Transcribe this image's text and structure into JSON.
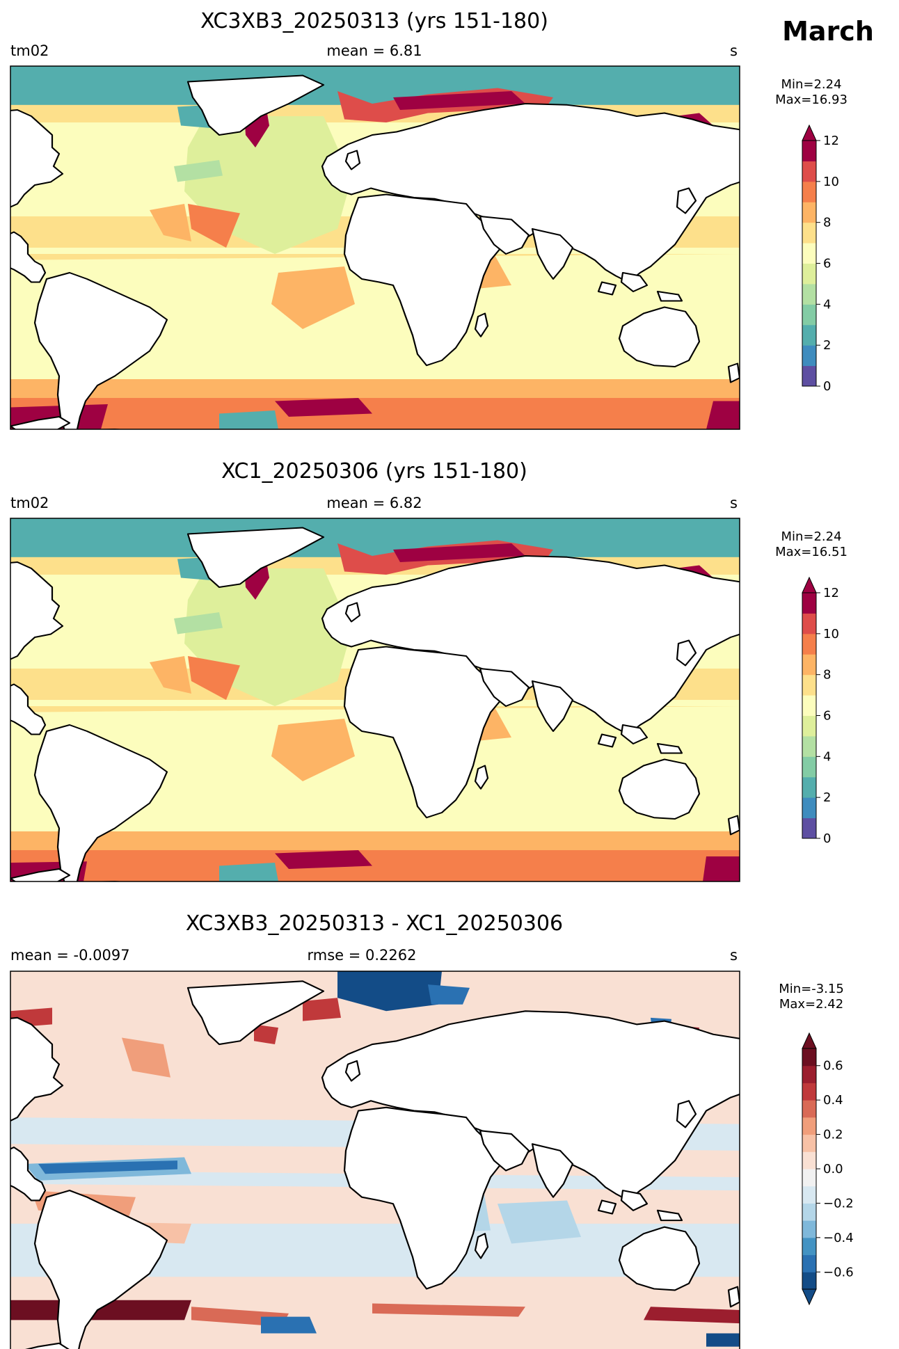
{
  "figure": {
    "month": "March"
  },
  "panels": [
    {
      "title": "XC3XB3_20250313 (yrs 151-180)",
      "left_label": "tm02",
      "center_label": "mean = 6.81",
      "right_label": "s",
      "minmax": [
        "Min=2.24",
        "Max=16.93"
      ],
      "colorbar": {
        "ticks": [
          "0",
          "2",
          "4",
          "6",
          "8",
          "10",
          "12"
        ],
        "levels": [
          0,
          1,
          2,
          3,
          4,
          5,
          6,
          7,
          8,
          9,
          10,
          11,
          12
        ],
        "colors": [
          "#5e4fa2",
          "#3f8cbe",
          "#54aead",
          "#83cca5",
          "#b3e0a3",
          "#deef9b",
          "#fcfdbd",
          "#fde08b",
          "#fdb465",
          "#f57f4b",
          "#de4d4a",
          "#9e0142"
        ],
        "extend": "max"
      },
      "map_kind": "wave_period"
    },
    {
      "title": "XC1_20250306 (yrs 151-180)",
      "left_label": "tm02",
      "center_label": "mean = 6.82",
      "right_label": "s",
      "minmax": [
        "Min=2.24",
        "Max=16.51"
      ],
      "colorbar": {
        "ticks": [
          "0",
          "2",
          "4",
          "6",
          "8",
          "10",
          "12"
        ],
        "levels": [
          0,
          1,
          2,
          3,
          4,
          5,
          6,
          7,
          8,
          9,
          10,
          11,
          12
        ],
        "colors": [
          "#5e4fa2",
          "#3f8cbe",
          "#54aead",
          "#83cca5",
          "#b3e0a3",
          "#deef9b",
          "#fcfdbd",
          "#fde08b",
          "#fdb465",
          "#f57f4b",
          "#de4d4a",
          "#9e0142"
        ],
        "extend": "max"
      },
      "map_kind": "wave_period"
    },
    {
      "title": "XC3XB3_20250313 - XC1_20250306",
      "left_label": "mean = -0.0097",
      "center_label": "rmse = 0.2262",
      "right_label": "s",
      "minmax": [
        "Min=-3.15",
        "Max=2.42"
      ],
      "colorbar": {
        "ticks": [
          "−0.6",
          "−0.4",
          "−0.2",
          "0.0",
          "0.2",
          "0.4",
          "0.6"
        ],
        "levels": [
          -0.7,
          -0.6,
          -0.5,
          -0.4,
          -0.3,
          -0.2,
          -0.1,
          0.0,
          0.1,
          0.2,
          0.3,
          0.4,
          0.5,
          0.6,
          0.7
        ],
        "colors": [
          "#134c87",
          "#2a71b2",
          "#4393c3",
          "#7fb8da",
          "#b4d6e8",
          "#d8e8f1",
          "#f1f1f1",
          "#f9e0d3",
          "#f7c1a6",
          "#f09e7b",
          "#d96a56",
          "#c0393b",
          "#9b1e2e",
          "#6c0f21"
        ],
        "extend": "both"
      },
      "map_kind": "difference"
    }
  ]
}
